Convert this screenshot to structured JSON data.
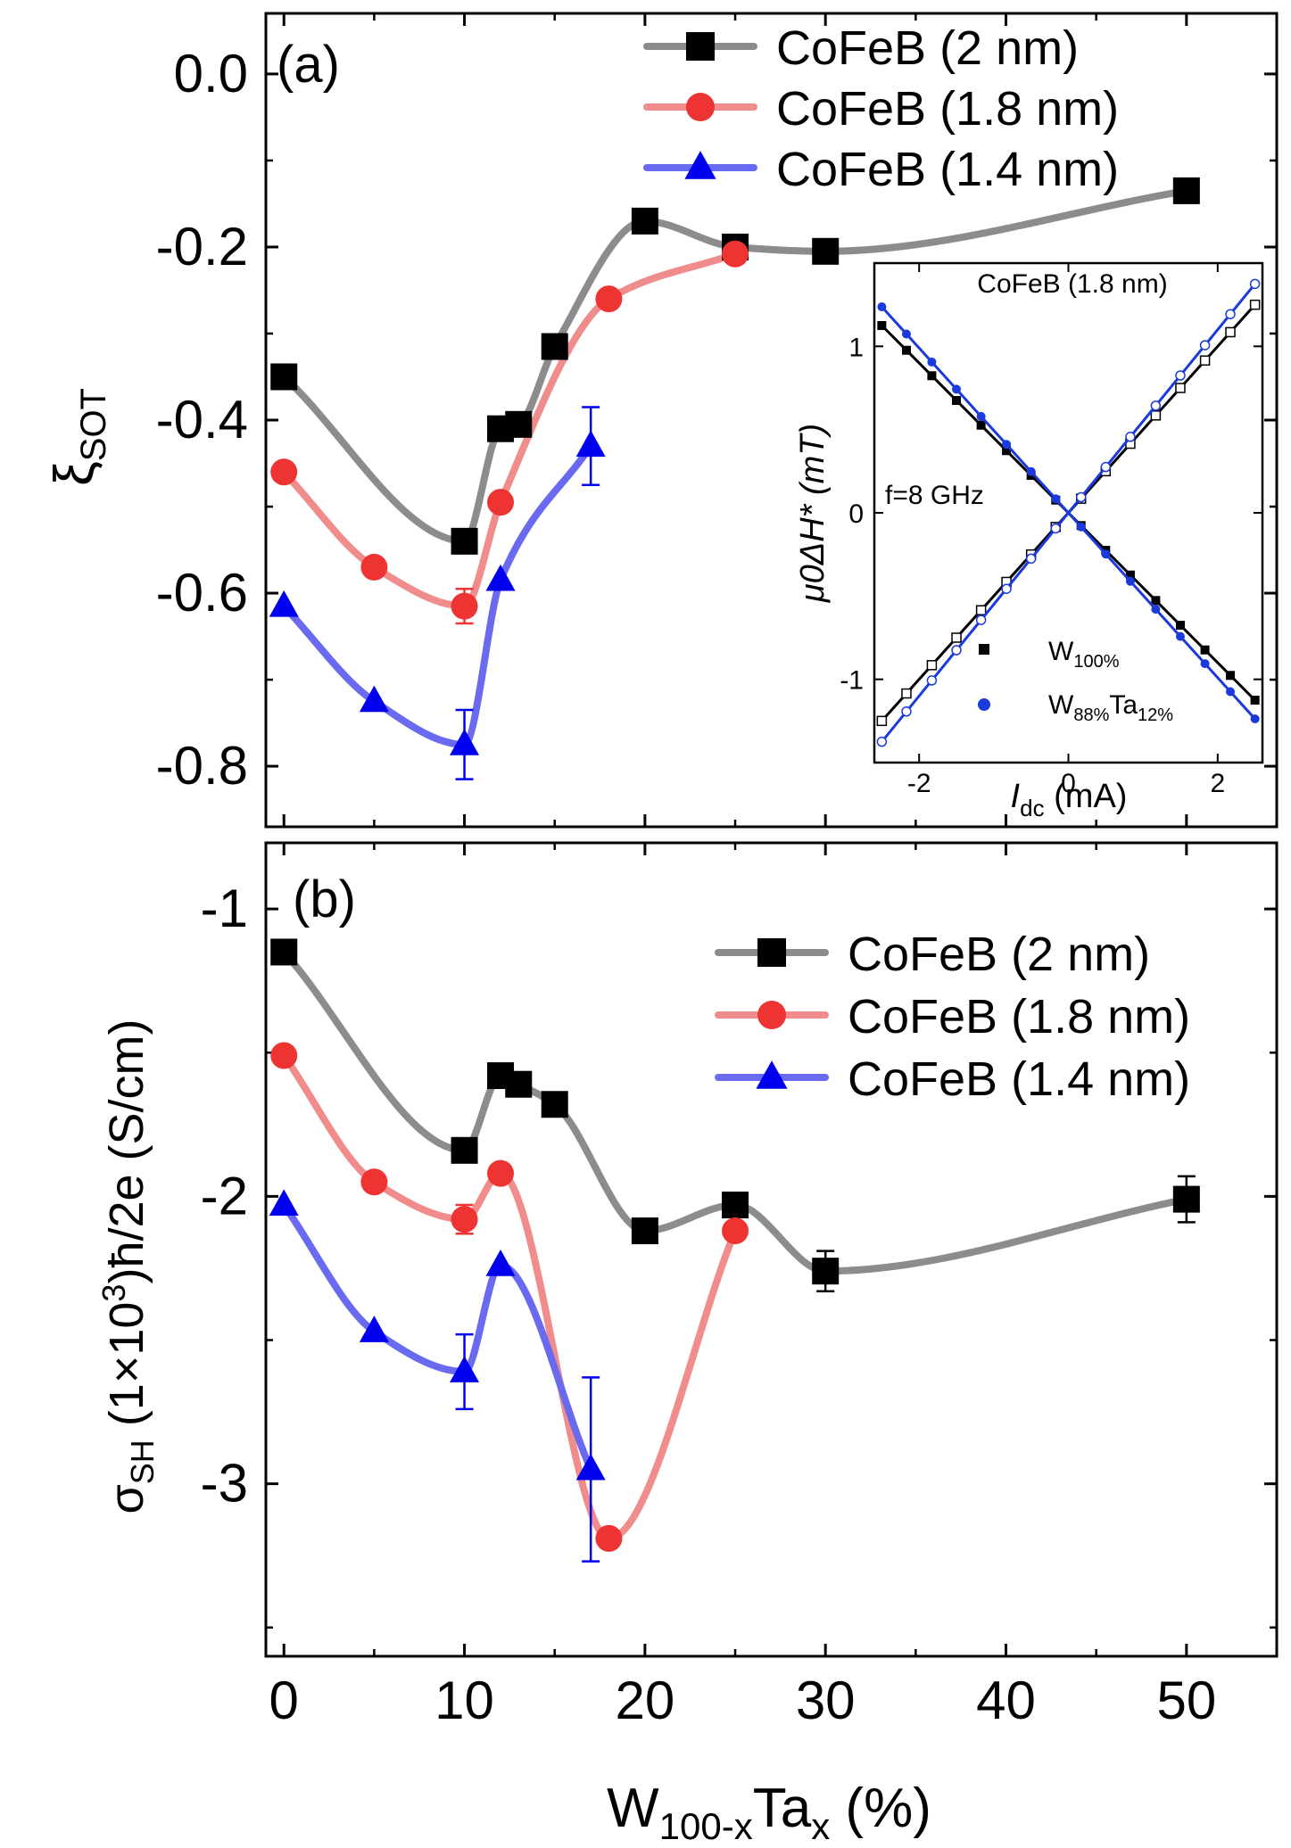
{
  "chart_data": [
    {
      "id": "a",
      "type": "line",
      "panel_label": "(a)",
      "ylabel": "ξ",
      "ylabel_sub": "SOT",
      "xlim": [
        -1,
        55
      ],
      "ylim": [
        -0.87,
        0.07
      ],
      "yticks": [
        0.0,
        -0.2,
        -0.4,
        -0.6,
        -0.8
      ],
      "ytick_labels": [
        "0.0",
        "-0.2",
        "-0.4",
        "-0.6",
        "-0.8"
      ],
      "xticks": [
        0,
        10,
        20,
        30,
        40,
        50
      ],
      "legend_position": "top-center",
      "series": [
        {
          "name": "CoFeB (2 nm)",
          "marker": "square",
          "color": "#000000",
          "line_color": "#8c8c8c",
          "x": [
            0,
            10,
            12,
            13,
            15,
            20,
            25,
            30,
            50
          ],
          "y": [
            -0.35,
            -0.54,
            -0.41,
            -0.405,
            -0.315,
            -0.17,
            -0.2,
            -0.205,
            -0.135
          ],
          "err": [
            0,
            0,
            0,
            0,
            0,
            0,
            0.008,
            0,
            0
          ]
        },
        {
          "name": "CoFeB (1.8 nm)",
          "marker": "circle",
          "color": "#ee3333",
          "line_color": "#f08c8c",
          "x": [
            0,
            5,
            10,
            12,
            18,
            25
          ],
          "y": [
            -0.46,
            -0.57,
            -0.615,
            -0.495,
            -0.26,
            -0.208
          ],
          "err": [
            0,
            0,
            0.02,
            0,
            0,
            0
          ]
        },
        {
          "name": "CoFeB (1.4 nm)",
          "marker": "triangle",
          "color": "#0000ee",
          "line_color": "#6a6af0",
          "x": [
            0,
            5,
            10,
            12,
            17
          ],
          "y": [
            -0.615,
            -0.725,
            -0.775,
            -0.585,
            -0.43
          ],
          "err": [
            0,
            0,
            0.04,
            0,
            0.045
          ]
        }
      ]
    },
    {
      "id": "inset",
      "type": "scatter",
      "title": "CoFeB (1.8 nm)",
      "annotation": "f=8 GHz",
      "xlabel": "I",
      "xlabel_sub": "dc",
      "xlabel_unit": " (mA)",
      "ylabel": "μ0ΔH* (mT)",
      "xlim": [
        -2.6,
        2.6
      ],
      "ylim": [
        -1.5,
        1.5
      ],
      "xticks": [
        -2,
        0,
        2
      ],
      "xtick_labels": [
        "-2",
        "0",
        "2"
      ],
      "yticks": [
        1,
        0,
        -1
      ],
      "ytick_labels": [
        "1",
        "0",
        "-1"
      ],
      "legend_position": "bottom-right",
      "series": [
        {
          "name": "W",
          "name_sub": "100%",
          "color": "#000000",
          "slope": 0.5,
          "marker": "square"
        },
        {
          "name": "W",
          "name_sub": "88%",
          "name_mid": "Ta",
          "name_sub2": "12%",
          "color": "#1a3adb",
          "slope": 0.55,
          "marker": "circle"
        }
      ],
      "current_points": [
        -2.5,
        -2.17,
        -1.83,
        -1.5,
        -1.17,
        -0.83,
        -0.5,
        -0.17,
        0.17,
        0.5,
        0.83,
        1.17,
        1.5,
        1.83,
        2.17,
        2.5
      ]
    },
    {
      "id": "b",
      "type": "line",
      "panel_label": "(b)",
      "ylabel": "σ",
      "ylabel_sub": "SH",
      "ylabel_rest_1": " (1×10",
      "ylabel_sup": "3",
      "ylabel_rest_2": ")ħ/2e (S/cm)",
      "xlabel": "W",
      "xlabel_sub1": "100-x",
      "xlabel_mid": "Ta",
      "xlabel_sub2": "x",
      "xlabel_unit": " (%)",
      "xlim": [
        -1,
        55
      ],
      "ylim": [
        -3.6,
        -0.77
      ],
      "yticks": [
        -1,
        -2,
        -3
      ],
      "ytick_labels": [
        "-1",
        "-2",
        "-3"
      ],
      "xticks": [
        0,
        10,
        20,
        30,
        40,
        50
      ],
      "xtick_labels": [
        "0",
        "10",
        "20",
        "30",
        "40",
        "50"
      ],
      "legend_position": "top-right",
      "series": [
        {
          "name": "CoFeB (2 nm)",
          "marker": "square",
          "color": "#000000",
          "line_color": "#8c8c8c",
          "x": [
            0,
            10,
            12,
            13,
            15,
            20,
            25,
            30,
            50
          ],
          "y": [
            -1.15,
            -1.84,
            -1.58,
            -1.61,
            -1.68,
            -2.12,
            -2.03,
            -2.26,
            -2.01
          ],
          "err": [
            0,
            0,
            0,
            0,
            0,
            0,
            0,
            0.07,
            0.08
          ]
        },
        {
          "name": "CoFeB (1.8 nm)",
          "marker": "circle",
          "color": "#ee3333",
          "line_color": "#f08c8c",
          "x": [
            0,
            5,
            10,
            12,
            18,
            25
          ],
          "y": [
            -1.51,
            -1.95,
            -2.08,
            -1.92,
            -3.19,
            -2.12
          ],
          "err": [
            0,
            0,
            0.05,
            0,
            0,
            0
          ]
        },
        {
          "name": "CoFeB (1.4 nm)",
          "marker": "triangle",
          "color": "#0000ee",
          "line_color": "#6a6af0",
          "x": [
            0,
            5,
            10,
            12,
            17
          ],
          "y": [
            -2.03,
            -2.47,
            -2.61,
            -2.24,
            -2.95
          ],
          "err": [
            0,
            0,
            0.13,
            0,
            0.32
          ]
        }
      ]
    }
  ]
}
